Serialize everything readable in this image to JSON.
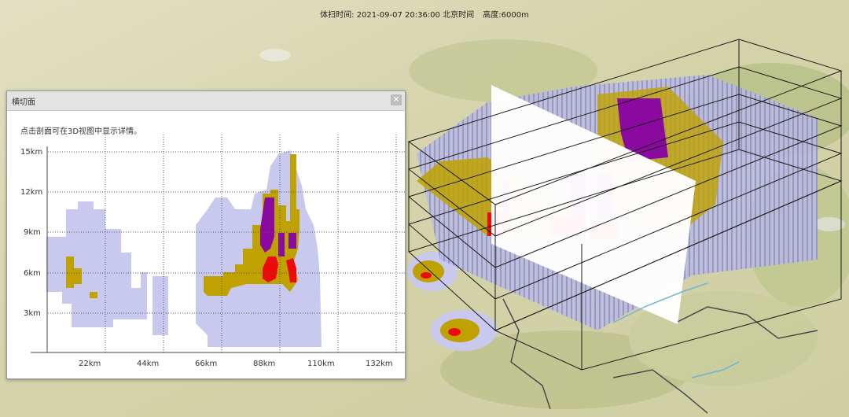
{
  "header": {
    "scan_time_label": "体扫时间: 2021-09-07 20:36:00 北京时间",
    "altitude_label": "高度:6000m"
  },
  "panel": {
    "title": "横切面",
    "close_icon": "close-icon",
    "hint": "点击剖面可在3D视图中显示详情。"
  },
  "profile_chart": {
    "y_labels": [
      "15km",
      "12km",
      "9km",
      "6km",
      "3km"
    ],
    "x_labels": [
      "22km",
      "44km",
      "66km",
      "88km",
      "110km",
      "132km"
    ]
  },
  "colors": {
    "light": "#c9c9f0",
    "yellow": "#bfa200",
    "purple": "#8a0aa0",
    "red": "#ee0a0a"
  }
}
